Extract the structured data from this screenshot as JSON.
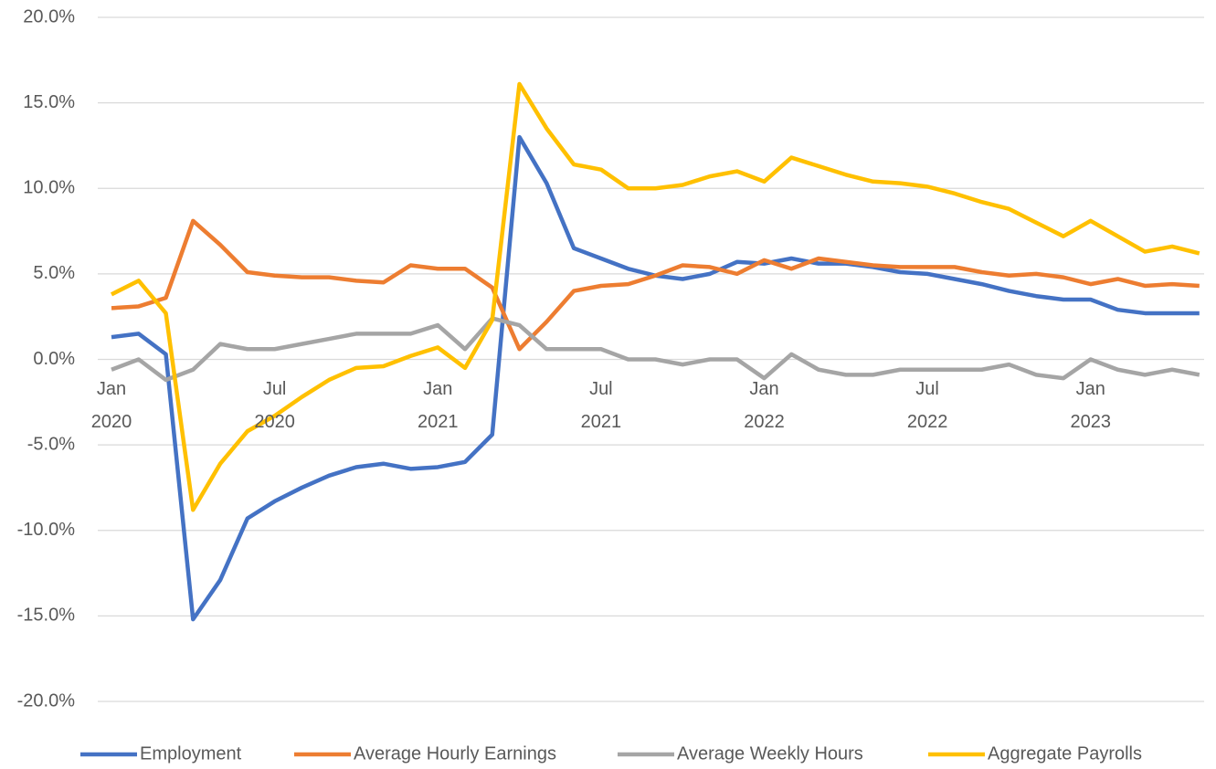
{
  "chart_data": {
    "type": "line",
    "categories": [
      "Jan 2020",
      null,
      null,
      null,
      null,
      null,
      "Jul 2020",
      null,
      null,
      null,
      null,
      null,
      "Jan 2021",
      null,
      null,
      null,
      null,
      null,
      "Jul 2021",
      null,
      null,
      null,
      null,
      null,
      "Jan 2022",
      null,
      null,
      null,
      null,
      null,
      "Jul 2022",
      null,
      null,
      null,
      null,
      null,
      "Jan 2023",
      null,
      null,
      null,
      null
    ],
    "series": [
      {
        "name": "Employment",
        "color": "#4472c4",
        "values": [
          1.3,
          1.5,
          0.3,
          -15.2,
          -12.9,
          -9.3,
          -8.3,
          -7.5,
          -6.8,
          -6.3,
          -6.1,
          -6.4,
          -6.3,
          -6.0,
          -4.4,
          13.0,
          10.3,
          6.5,
          5.9,
          5.3,
          4.9,
          4.7,
          5.0,
          5.7,
          5.6,
          5.9,
          5.6,
          5.6,
          5.4,
          5.1,
          5.0,
          4.7,
          4.4,
          4.0,
          3.7,
          3.5,
          3.5,
          2.9,
          2.7,
          2.7,
          2.7
        ]
      },
      {
        "name": "Average Hourly Earnings",
        "color": "#ed7d31",
        "values": [
          3.0,
          3.1,
          3.6,
          8.1,
          6.7,
          5.1,
          4.9,
          4.8,
          4.8,
          4.6,
          4.5,
          5.5,
          5.3,
          5.3,
          4.2,
          0.6,
          2.2,
          4.0,
          4.3,
          4.4,
          4.9,
          5.5,
          5.4,
          5.0,
          5.8,
          5.3,
          5.9,
          5.7,
          5.5,
          5.4,
          5.4,
          5.4,
          5.1,
          4.9,
          5.0,
          4.8,
          4.4,
          4.7,
          4.3,
          4.4,
          4.3
        ]
      },
      {
        "name": "Average Weekly Hours",
        "color": "#a5a5a5",
        "values": [
          -0.6,
          0,
          -1.2,
          -0.6,
          0.9,
          0.6,
          0.6,
          0.9,
          1.2,
          1.5,
          1.5,
          1.5,
          2.0,
          0.6,
          2.4,
          2.0,
          0.6,
          0.6,
          0.6,
          0,
          0,
          -0.3,
          0,
          0,
          -1.1,
          0.3,
          -0.6,
          -0.9,
          -0.9,
          -0.6,
          -0.6,
          -0.6,
          -0.6,
          -0.3,
          -0.9,
          -1.1,
          0,
          -0.6,
          -0.9,
          -0.6,
          -0.9
        ]
      },
      {
        "name": "Aggregate Payrolls",
        "color": "#ffc000",
        "values": [
          3.8,
          4.6,
          2.7,
          -8.8,
          -6.1,
          -4.2,
          -3.3,
          -2.2,
          -1.2,
          -0.5,
          -0.4,
          0.2,
          0.7,
          -0.5,
          2.3,
          16.1,
          13.5,
          11.4,
          11.1,
          10.0,
          10.0,
          10.2,
          10.7,
          11.0,
          10.4,
          11.8,
          11.3,
          10.8,
          10.4,
          10.3,
          10.1,
          9.7,
          9.2,
          8.8,
          8.0,
          7.2,
          8.1,
          7.2,
          6.3,
          6.6,
          6.2
        ]
      }
    ],
    "ylim": [
      -20,
      20
    ],
    "yticks": [
      {
        "value": -20,
        "label": "-20.0%"
      },
      {
        "value": -15,
        "label": "-15.0%"
      },
      {
        "value": -10,
        "label": "-10.0%"
      },
      {
        "value": -5,
        "label": "-5.0%"
      },
      {
        "value": 0,
        "label": "0.0%"
      },
      {
        "value": 5,
        "label": "5.0%"
      },
      {
        "value": 10,
        "label": "10.0%"
      },
      {
        "value": 15,
        "label": "15.0%"
      },
      {
        "value": 20,
        "label": "20.0%"
      }
    ],
    "grid": true,
    "legend": "bottom"
  }
}
